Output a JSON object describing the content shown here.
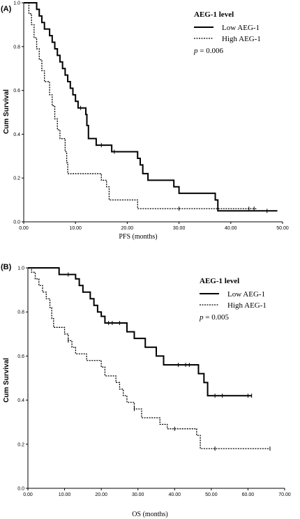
{
  "chart_data": [
    {
      "type": "line",
      "panel_label": "(A)",
      "xlabel": "PFS (months)",
      "ylabel": "Cum Survival",
      "xlim": [
        0,
        50
      ],
      "ylim": [
        0,
        1.0
      ],
      "x_ticks": [
        "0.00",
        "10.00",
        "20.00",
        "30.00",
        "40.00",
        "50.00"
      ],
      "y_ticks": [
        "0.0",
        "0.2",
        "0.4",
        "0.6",
        "0.8",
        "1.0"
      ],
      "legend": {
        "title": "AEG-1 level",
        "entries": [
          "Low AEG-1",
          "High AEG-1"
        ],
        "p_label": "p",
        "p_value": "= 0.006",
        "placement": "top-right"
      },
      "series": [
        {
          "name": "Low AEG-1",
          "style": "solid",
          "points": [
            [
              0,
              1.0
            ],
            [
              2,
              1.0
            ],
            [
              2.5,
              0.97
            ],
            [
              3,
              0.94
            ],
            [
              3.5,
              0.91
            ],
            [
              4,
              0.88
            ],
            [
              5,
              0.85
            ],
            [
              5.5,
              0.82
            ],
            [
              6,
              0.79
            ],
            [
              6.5,
              0.76
            ],
            [
              7,
              0.73
            ],
            [
              7.5,
              0.7
            ],
            [
              8,
              0.67
            ],
            [
              8.5,
              0.64
            ],
            [
              9,
              0.61
            ],
            [
              9.5,
              0.58
            ],
            [
              10,
              0.55
            ],
            [
              10.5,
              0.52
            ],
            [
              12,
              0.49
            ],
            [
              12.2,
              0.44
            ],
            [
              12.5,
              0.38
            ],
            [
              14,
              0.35
            ],
            [
              17,
              0.32
            ],
            [
              22,
              0.29
            ],
            [
              22.5,
              0.26
            ],
            [
              23,
              0.22
            ],
            [
              24,
              0.19
            ],
            [
              29,
              0.16
            ],
            [
              30,
              0.13
            ],
            [
              37,
              0.1
            ],
            [
              37.5,
              0.05
            ],
            [
              49,
              0.05
            ]
          ],
          "censors": [
            [
              11,
              0.52
            ],
            [
              15,
              0.35
            ],
            [
              17.5,
              0.32
            ],
            [
              47,
              0.05
            ]
          ]
        },
        {
          "name": "High AEG-1",
          "style": "dashed",
          "points": [
            [
              0,
              1.0
            ],
            [
              1,
              0.95
            ],
            [
              1.5,
              0.9
            ],
            [
              2,
              0.84
            ],
            [
              2.5,
              0.79
            ],
            [
              3,
              0.74
            ],
            [
              3.5,
              0.69
            ],
            [
              4,
              0.64
            ],
            [
              5,
              0.58
            ],
            [
              5.5,
              0.53
            ],
            [
              6,
              0.47
            ],
            [
              6.5,
              0.42
            ],
            [
              7,
              0.38
            ],
            [
              8,
              0.32
            ],
            [
              8.3,
              0.27
            ],
            [
              8.5,
              0.22
            ],
            [
              15,
              0.19
            ],
            [
              16,
              0.16
            ],
            [
              16.5,
              0.1
            ],
            [
              22,
              0.06
            ],
            [
              45,
              0.06
            ]
          ],
          "censors": [
            [
              30,
              0.06
            ],
            [
              43.5,
              0.06
            ],
            [
              44.5,
              0.06
            ]
          ]
        }
      ]
    },
    {
      "type": "line",
      "panel_label": "(B)",
      "xlabel": "OS (months)",
      "ylabel": "Cum Survival",
      "xlim": [
        0,
        70
      ],
      "ylim": [
        0,
        1.0
      ],
      "x_ticks": [
        "0.00",
        "10.00",
        "20.00",
        "30.00",
        "40.00",
        "50.00",
        "60.00",
        "70.00"
      ],
      "y_ticks": [
        "0.0",
        "0.2",
        "0.4",
        "0.6",
        "0.8",
        "1.0"
      ],
      "legend": {
        "title": "AEG-1 level",
        "entries": [
          "Low AEG-1",
          "High AEG-1"
        ],
        "p_label": "p",
        "p_value": "= 0.005",
        "placement": "top-right"
      },
      "series": [
        {
          "name": "Low AEG-1",
          "style": "solid",
          "points": [
            [
              0,
              1.0
            ],
            [
              8,
              1.0
            ],
            [
              8.5,
              0.97
            ],
            [
              12,
              0.97
            ],
            [
              13,
              0.95
            ],
            [
              14,
              0.92
            ],
            [
              15,
              0.89
            ],
            [
              17,
              0.86
            ],
            [
              18,
              0.83
            ],
            [
              19,
              0.8
            ],
            [
              20,
              0.78
            ],
            [
              21,
              0.75
            ],
            [
              26,
              0.75
            ],
            [
              27,
              0.71
            ],
            [
              29,
              0.68
            ],
            [
              32,
              0.64
            ],
            [
              35,
              0.6
            ],
            [
              37,
              0.56
            ],
            [
              46,
              0.56
            ],
            [
              46.5,
              0.52
            ],
            [
              48,
              0.48
            ],
            [
              49,
              0.42
            ],
            [
              61,
              0.42
            ]
          ],
          "censors": [
            [
              11,
              0.97
            ],
            [
              22,
              0.75
            ],
            [
              23,
              0.75
            ],
            [
              25,
              0.75
            ],
            [
              41,
              0.56
            ],
            [
              43,
              0.56
            ],
            [
              44,
              0.56
            ],
            [
              51,
              0.42
            ],
            [
              53,
              0.42
            ],
            [
              60,
              0.42
            ],
            [
              61,
              0.42
            ]
          ]
        },
        {
          "name": "High AEG-1",
          "style": "dashed",
          "points": [
            [
              0,
              1.0
            ],
            [
              1,
              0.98
            ],
            [
              2,
              0.95
            ],
            [
              3,
              0.92
            ],
            [
              4,
              0.89
            ],
            [
              5,
              0.86
            ],
            [
              6,
              0.82
            ],
            [
              6.5,
              0.77
            ],
            [
              7,
              0.73
            ],
            [
              10,
              0.7
            ],
            [
              11,
              0.67
            ],
            [
              12,
              0.64
            ],
            [
              13,
              0.61
            ],
            [
              15,
              0.61
            ],
            [
              16,
              0.58
            ],
            [
              20,
              0.55
            ],
            [
              21,
              0.51
            ],
            [
              24,
              0.48
            ],
            [
              25,
              0.45
            ],
            [
              26,
              0.42
            ],
            [
              27,
              0.39
            ],
            [
              29,
              0.36
            ],
            [
              31,
              0.32
            ],
            [
              36,
              0.29
            ],
            [
              38,
              0.27
            ],
            [
              46,
              0.24
            ],
            [
              47,
              0.18
            ],
            [
              66,
              0.18
            ]
          ],
          "censors": [
            [
              11,
              0.67
            ],
            [
              29,
              0.36
            ],
            [
              40,
              0.27
            ],
            [
              51,
              0.18
            ],
            [
              66,
              0.18
            ]
          ]
        }
      ]
    }
  ]
}
